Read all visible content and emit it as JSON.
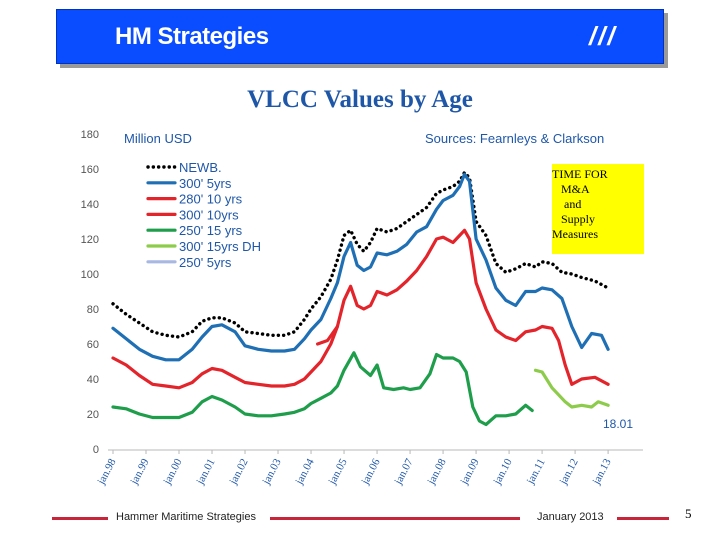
{
  "header": {
    "title": "HM Strategies",
    "mark": "///"
  },
  "chart_data": {
    "type": "line",
    "title": "VLCC Values by Age",
    "ylabel": "Million USD",
    "xlabel": "",
    "sources": "Sources: Fearnleys  & Clarkson",
    "ylim": [
      0,
      180
    ],
    "yticks": [
      0,
      20,
      40,
      60,
      80,
      100,
      120,
      140,
      160,
      180
    ],
    "xlim": [
      1998.0,
      2013.3
    ],
    "xticks": [
      {
        "label": "jan.98",
        "x": 1998.0
      },
      {
        "label": "jan.99",
        "x": 1999.0
      },
      {
        "label": "jan.00",
        "x": 2000.0
      },
      {
        "label": "jan.01",
        "x": 2001.0
      },
      {
        "label": "jan.02",
        "x": 2002.0
      },
      {
        "label": "jan.03",
        "x": 2003.0
      },
      {
        "label": "jan.04",
        "x": 2004.0
      },
      {
        "label": "jan.05",
        "x": 2005.0
      },
      {
        "label": "jan.06",
        "x": 2006.0
      },
      {
        "label": "jan.07",
        "x": 2007.0
      },
      {
        "label": "jan.08",
        "x": 2008.0
      },
      {
        "label": "jan.09",
        "x": 2009.0
      },
      {
        "label": "jan.10",
        "x": 2010.0
      },
      {
        "label": "jan.11",
        "x": 2011.0
      },
      {
        "label": "jan.12",
        "x": 2012.0
      },
      {
        "label": "jan.13",
        "x": 2013.0
      }
    ],
    "grid": false,
    "legend_position": "top-left",
    "annotation": "18.01",
    "series": [
      {
        "name": "NEWB.",
        "color": "#000000",
        "dashed": true,
        "points": [
          [
            1998.0,
            83
          ],
          [
            1998.4,
            77
          ],
          [
            1998.8,
            72
          ],
          [
            1999.2,
            67
          ],
          [
            1999.6,
            65
          ],
          [
            2000.0,
            64
          ],
          [
            2000.4,
            67
          ],
          [
            2000.7,
            73
          ],
          [
            2001.0,
            75
          ],
          [
            2001.3,
            75
          ],
          [
            2001.7,
            72
          ],
          [
            2002.0,
            67
          ],
          [
            2002.4,
            66
          ],
          [
            2002.8,
            65
          ],
          [
            2003.2,
            65
          ],
          [
            2003.5,
            67
          ],
          [
            2003.8,
            74
          ],
          [
            2004.0,
            80
          ],
          [
            2004.3,
            87
          ],
          [
            2004.6,
            97
          ],
          [
            2004.8,
            108
          ],
          [
            2005.0,
            122
          ],
          [
            2005.2,
            125
          ],
          [
            2005.4,
            117
          ],
          [
            2005.6,
            113
          ],
          [
            2005.8,
            118
          ],
          [
            2006.0,
            126
          ],
          [
            2006.3,
            124
          ],
          [
            2006.6,
            126
          ],
          [
            2006.9,
            130
          ],
          [
            2007.2,
            134
          ],
          [
            2007.5,
            138
          ],
          [
            2007.8,
            146
          ],
          [
            2008.0,
            148
          ],
          [
            2008.3,
            150
          ],
          [
            2008.5,
            153
          ],
          [
            2008.65,
            158
          ],
          [
            2008.8,
            155
          ],
          [
            2009.0,
            130
          ],
          [
            2009.3,
            122
          ],
          [
            2009.6,
            106
          ],
          [
            2009.9,
            101
          ],
          [
            2010.2,
            103
          ],
          [
            2010.5,
            106
          ],
          [
            2010.8,
            104
          ],
          [
            2011.0,
            107
          ],
          [
            2011.3,
            106
          ],
          [
            2011.6,
            101
          ],
          [
            2011.9,
            100
          ],
          [
            2012.2,
            98
          ],
          [
            2012.6,
            96
          ],
          [
            2013.0,
            92
          ]
        ]
      },
      {
        "name": "300' 5yrs",
        "color": "#1f6fb5",
        "points": [
          [
            1998.0,
            69
          ],
          [
            1998.4,
            63
          ],
          [
            1998.8,
            57
          ],
          [
            1999.2,
            53
          ],
          [
            1999.6,
            51
          ],
          [
            2000.0,
            51
          ],
          [
            2000.4,
            57
          ],
          [
            2000.7,
            64
          ],
          [
            2001.0,
            70
          ],
          [
            2001.3,
            71
          ],
          [
            2001.7,
            67
          ],
          [
            2002.0,
            59
          ],
          [
            2002.4,
            57
          ],
          [
            2002.8,
            56
          ],
          [
            2003.2,
            56
          ],
          [
            2003.5,
            57
          ],
          [
            2003.8,
            63
          ],
          [
            2004.0,
            68
          ],
          [
            2004.3,
            74
          ],
          [
            2004.6,
            86
          ],
          [
            2004.8,
            95
          ],
          [
            2005.0,
            110
          ],
          [
            2005.2,
            118
          ],
          [
            2005.4,
            105
          ],
          [
            2005.6,
            102
          ],
          [
            2005.8,
            104
          ],
          [
            2006.0,
            112
          ],
          [
            2006.3,
            111
          ],
          [
            2006.6,
            113
          ],
          [
            2006.9,
            117
          ],
          [
            2007.2,
            124
          ],
          [
            2007.5,
            127
          ],
          [
            2007.8,
            137
          ],
          [
            2008.0,
            142
          ],
          [
            2008.3,
            145
          ],
          [
            2008.5,
            150
          ],
          [
            2008.65,
            157
          ],
          [
            2008.8,
            153
          ],
          [
            2009.0,
            120
          ],
          [
            2009.3,
            108
          ],
          [
            2009.6,
            92
          ],
          [
            2009.9,
            85
          ],
          [
            2010.2,
            82
          ],
          [
            2010.5,
            90
          ],
          [
            2010.8,
            90
          ],
          [
            2011.0,
            92
          ],
          [
            2011.3,
            91
          ],
          [
            2011.6,
            86
          ],
          [
            2011.9,
            70
          ],
          [
            2012.2,
            58
          ],
          [
            2012.5,
            66
          ],
          [
            2012.8,
            65
          ],
          [
            2013.0,
            57
          ]
        ]
      },
      {
        "name": "280' 10 yrs",
        "color": "#e3242b",
        "points": [
          [
            1998.0,
            52
          ],
          [
            1998.4,
            48
          ],
          [
            1998.8,
            42
          ],
          [
            1999.2,
            37
          ],
          [
            1999.6,
            36
          ],
          [
            2000.0,
            35
          ],
          [
            2000.4,
            38
          ],
          [
            2000.7,
            43
          ],
          [
            2001.0,
            46
          ],
          [
            2001.3,
            45
          ],
          [
            2001.7,
            41
          ],
          [
            2002.0,
            38
          ],
          [
            2002.4,
            37
          ],
          [
            2002.8,
            36
          ],
          [
            2003.2,
            36
          ],
          [
            2003.5,
            37
          ],
          [
            2003.8,
            40
          ],
          [
            2004.0,
            44
          ],
          [
            2004.3,
            50
          ],
          [
            2004.6,
            60
          ],
          [
            2004.8,
            70
          ]
        ]
      },
      {
        "name": "300' 10yrs",
        "color": "#e3242b",
        "points": [
          [
            2004.2,
            60
          ],
          [
            2004.5,
            62
          ],
          [
            2004.8,
            70
          ],
          [
            2005.0,
            85
          ],
          [
            2005.2,
            93
          ],
          [
            2005.4,
            82
          ],
          [
            2005.6,
            80
          ],
          [
            2005.8,
            82
          ],
          [
            2006.0,
            90
          ],
          [
            2006.3,
            88
          ],
          [
            2006.6,
            91
          ],
          [
            2006.9,
            96
          ],
          [
            2007.2,
            102
          ],
          [
            2007.5,
            110
          ],
          [
            2007.8,
            120
          ],
          [
            2008.0,
            121
          ],
          [
            2008.3,
            118
          ],
          [
            2008.5,
            122
          ],
          [
            2008.65,
            125
          ],
          [
            2008.8,
            120
          ],
          [
            2009.0,
            95
          ],
          [
            2009.3,
            80
          ],
          [
            2009.6,
            68
          ],
          [
            2009.9,
            64
          ],
          [
            2010.2,
            62
          ],
          [
            2010.5,
            67
          ],
          [
            2010.8,
            68
          ],
          [
            2011.0,
            70
          ],
          [
            2011.3,
            69
          ],
          [
            2011.5,
            62
          ],
          [
            2011.7,
            48
          ],
          [
            2011.9,
            37
          ],
          [
            2012.2,
            40
          ],
          [
            2012.6,
            41
          ],
          [
            2013.0,
            37
          ]
        ]
      },
      {
        "name": "250' 15 yrs",
        "color": "#1e9e4b",
        "points": [
          [
            1998.0,
            24
          ],
          [
            1998.4,
            23
          ],
          [
            1998.8,
            20
          ],
          [
            1999.2,
            18
          ],
          [
            1999.6,
            18
          ],
          [
            2000.0,
            18
          ],
          [
            2000.4,
            21
          ],
          [
            2000.7,
            27
          ],
          [
            2001.0,
            30
          ],
          [
            2001.3,
            28
          ],
          [
            2001.7,
            24
          ],
          [
            2002.0,
            20
          ],
          [
            2002.4,
            19
          ],
          [
            2002.8,
            19
          ],
          [
            2003.2,
            20
          ],
          [
            2003.5,
            21
          ],
          [
            2003.8,
            23
          ],
          [
            2004.0,
            26
          ],
          [
            2004.3,
            29
          ],
          [
            2004.6,
            32
          ],
          [
            2004.8,
            36
          ],
          [
            2005.0,
            45
          ],
          [
            2005.3,
            55
          ],
          [
            2005.5,
            47
          ],
          [
            2005.8,
            42
          ],
          [
            2006.0,
            48
          ],
          [
            2006.2,
            35
          ],
          [
            2006.5,
            34
          ],
          [
            2006.8,
            35
          ],
          [
            2007.0,
            34
          ],
          [
            2007.3,
            35
          ],
          [
            2007.6,
            43
          ],
          [
            2007.8,
            54
          ],
          [
            2008.0,
            52
          ],
          [
            2008.3,
            52
          ],
          [
            2008.5,
            50
          ],
          [
            2008.7,
            44
          ],
          [
            2008.9,
            24
          ],
          [
            2009.1,
            16
          ],
          [
            2009.3,
            14
          ],
          [
            2009.6,
            19
          ],
          [
            2009.9,
            19
          ],
          [
            2010.2,
            20
          ],
          [
            2010.5,
            25
          ],
          [
            2010.7,
            22
          ]
        ]
      },
      {
        "name": "300' 15yrs DH",
        "color": "#8dcc4a",
        "points": [
          [
            2010.8,
            45
          ],
          [
            2011.0,
            44
          ],
          [
            2011.3,
            35
          ],
          [
            2011.5,
            31
          ],
          [
            2011.7,
            27
          ],
          [
            2011.9,
            24
          ],
          [
            2012.2,
            25
          ],
          [
            2012.5,
            24
          ],
          [
            2012.7,
            27
          ],
          [
            2013.0,
            25
          ]
        ]
      },
      {
        "name": "250' 5yrs",
        "color": "#a8b8e2",
        "points": []
      }
    ]
  },
  "note": {
    "lines": [
      "TIME FOR",
      "   M&A",
      "    and",
      "   Supply",
      "Measures"
    ]
  },
  "footer": {
    "left": "Hammer Maritime Strategies",
    "date": "January 2013",
    "page": "5"
  }
}
